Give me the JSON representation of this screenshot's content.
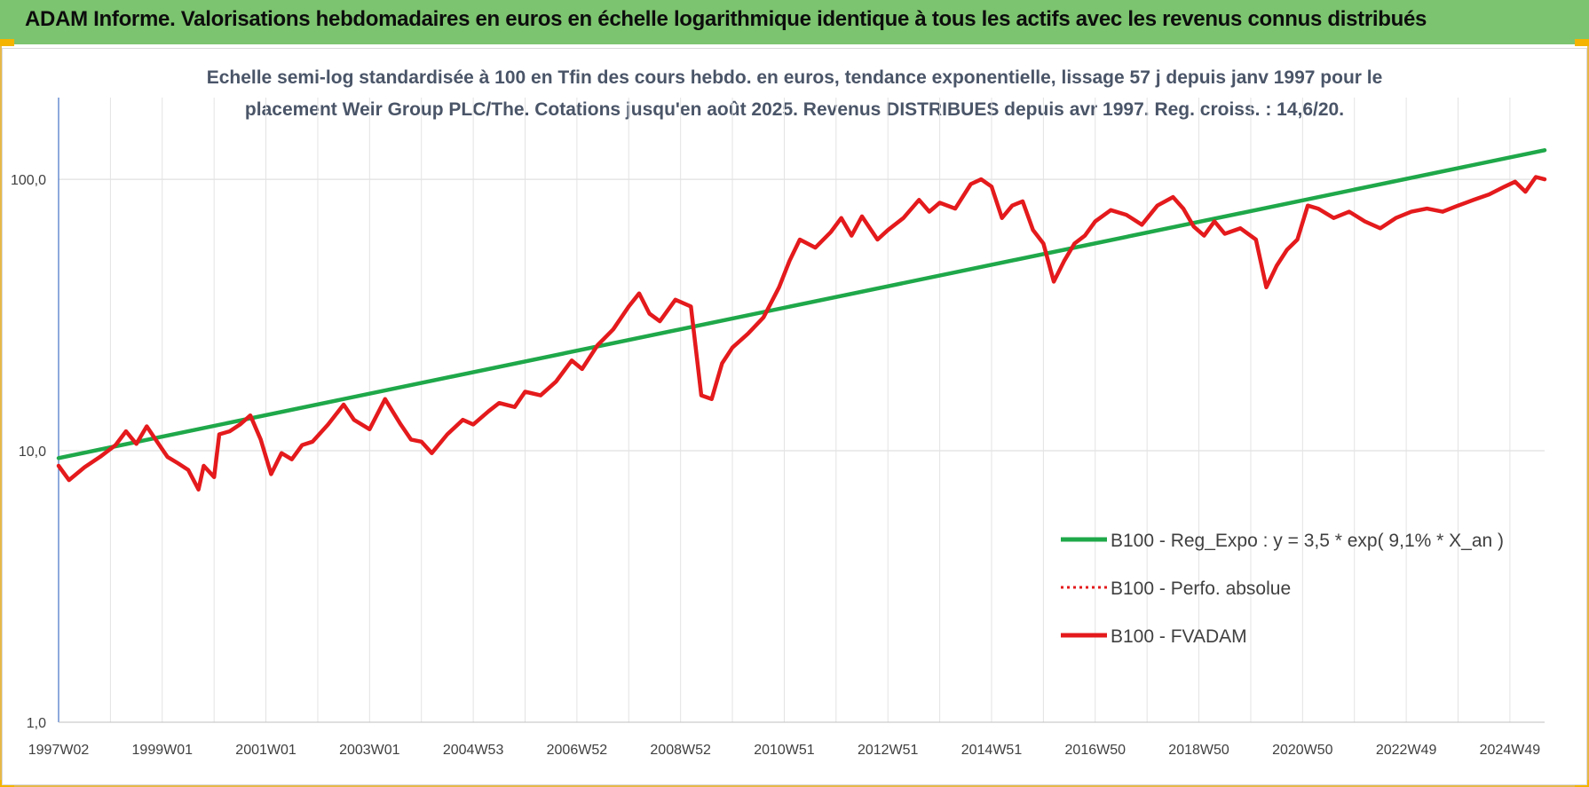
{
  "header": {
    "title": "ADAM Informe. Valorisations hebdomadaires en euros en échelle logarithmique identique à tous les actifs avec les revenus connus distribués"
  },
  "chart_data": {
    "type": "line",
    "title_line1": "Echelle semi-log standardisée à 100 en Tfin des cours hebdo. en euros, tendance exponentielle, lissage 57 j depuis janv 1997 pour le",
    "title_line2": "placement Weir Group PLC/The. Cotations jusqu'en août 2025. Revenus DISTRIBUES depuis avr 1997. Reg. croiss. : 14,6/20.",
    "y_scale": "log",
    "ylim": [
      1,
      200
    ],
    "y_ticks": [
      "1,0",
      "10,0",
      "100,0"
    ],
    "y_tick_values": [
      1,
      10,
      100
    ],
    "x_ticks": [
      "1997W02",
      "1999W01",
      "2001W01",
      "2003W01",
      "2004W53",
      "2006W52",
      "2008W52",
      "2010W51",
      "2012W51",
      "2014W51",
      "2016W50",
      "2018W50",
      "2020W50",
      "2022W49",
      "2024W49"
    ],
    "x_tick_years": [
      1997.0,
      1999.0,
      2001.0,
      2003.0,
      2005.0,
      2007.0,
      2009.0,
      2011.0,
      2013.0,
      2015.0,
      2017.0,
      2019.0,
      2021.0,
      2023.0,
      2025.0
    ],
    "xlim": [
      1997.0,
      2025.67
    ],
    "grid": true,
    "legend_position": "bottom-right",
    "series": [
      {
        "name": "B100 - Reg_Expo : y = 3,5 * exp( 9,1% *  X_an )",
        "color": "#1fa84a",
        "style": "solid",
        "points": [
          [
            1997.0,
            9.4
          ],
          [
            2025.67,
            128
          ]
        ]
      },
      {
        "name": "B100 - Perfo. absolue",
        "color": "#e41a1c",
        "style": "dotted",
        "points": []
      },
      {
        "name": "B100 - FVADAM",
        "color": "#e41a1c",
        "style": "solid",
        "points": [
          [
            1997.0,
            8.8
          ],
          [
            1997.2,
            7.8
          ],
          [
            1997.5,
            8.7
          ],
          [
            1997.8,
            9.5
          ],
          [
            1998.1,
            10.5
          ],
          [
            1998.3,
            11.8
          ],
          [
            1998.5,
            10.6
          ],
          [
            1998.7,
            12.3
          ],
          [
            1998.9,
            10.8
          ],
          [
            1999.1,
            9.5
          ],
          [
            1999.3,
            9.0
          ],
          [
            1999.5,
            8.5
          ],
          [
            1999.7,
            7.2
          ],
          [
            1999.8,
            8.8
          ],
          [
            2000.0,
            8.0
          ],
          [
            2000.1,
            11.5
          ],
          [
            2000.3,
            11.8
          ],
          [
            2000.5,
            12.5
          ],
          [
            2000.7,
            13.5
          ],
          [
            2000.9,
            11.0
          ],
          [
            2001.1,
            8.2
          ],
          [
            2001.3,
            9.8
          ],
          [
            2001.5,
            9.3
          ],
          [
            2001.7,
            10.5
          ],
          [
            2001.9,
            10.8
          ],
          [
            2002.2,
            12.5
          ],
          [
            2002.5,
            14.8
          ],
          [
            2002.7,
            13.0
          ],
          [
            2003.0,
            12.0
          ],
          [
            2003.3,
            15.5
          ],
          [
            2003.6,
            12.5
          ],
          [
            2003.8,
            11.0
          ],
          [
            2004.0,
            10.8
          ],
          [
            2004.2,
            9.8
          ],
          [
            2004.5,
            11.5
          ],
          [
            2004.8,
            13.0
          ],
          [
            2005.0,
            12.5
          ],
          [
            2005.3,
            14.0
          ],
          [
            2005.5,
            15.0
          ],
          [
            2005.8,
            14.5
          ],
          [
            2006.0,
            16.5
          ],
          [
            2006.3,
            16.0
          ],
          [
            2006.6,
            18.0
          ],
          [
            2006.9,
            21.5
          ],
          [
            2007.1,
            20.0
          ],
          [
            2007.4,
            24.5
          ],
          [
            2007.7,
            28.0
          ],
          [
            2008.0,
            34.0
          ],
          [
            2008.2,
            38.0
          ],
          [
            2008.4,
            32.0
          ],
          [
            2008.6,
            30.0
          ],
          [
            2008.9,
            36.0
          ],
          [
            2009.2,
            34.0
          ],
          [
            2009.4,
            16.0
          ],
          [
            2009.6,
            15.5
          ],
          [
            2009.8,
            21.0
          ],
          [
            2010.0,
            24.0
          ],
          [
            2010.3,
            27.0
          ],
          [
            2010.6,
            31.0
          ],
          [
            2010.9,
            40.0
          ],
          [
            2011.1,
            50.0
          ],
          [
            2011.3,
            60.0
          ],
          [
            2011.6,
            56.0
          ],
          [
            2011.9,
            64.0
          ],
          [
            2012.1,
            72.0
          ],
          [
            2012.3,
            62.0
          ],
          [
            2012.5,
            73.0
          ],
          [
            2012.8,
            60.0
          ],
          [
            2013.0,
            65.0
          ],
          [
            2013.3,
            72.0
          ],
          [
            2013.6,
            84.0
          ],
          [
            2013.8,
            76.0
          ],
          [
            2014.0,
            82.0
          ],
          [
            2014.3,
            78.0
          ],
          [
            2014.6,
            96.0
          ],
          [
            2014.8,
            100.0
          ],
          [
            2015.0,
            94.0
          ],
          [
            2015.2,
            72.0
          ],
          [
            2015.4,
            80.0
          ],
          [
            2015.6,
            83.0
          ],
          [
            2015.8,
            65.0
          ],
          [
            2016.0,
            58.0
          ],
          [
            2016.2,
            42.0
          ],
          [
            2016.4,
            50.0
          ],
          [
            2016.6,
            58.0
          ],
          [
            2016.8,
            62.0
          ],
          [
            2017.0,
            70.0
          ],
          [
            2017.3,
            77.0
          ],
          [
            2017.6,
            74.0
          ],
          [
            2017.9,
            68.0
          ],
          [
            2018.2,
            80.0
          ],
          [
            2018.5,
            86.0
          ],
          [
            2018.7,
            78.0
          ],
          [
            2018.9,
            67.0
          ],
          [
            2019.1,
            62.0
          ],
          [
            2019.3,
            70.0
          ],
          [
            2019.5,
            63.0
          ],
          [
            2019.8,
            66.0
          ],
          [
            2020.1,
            60.0
          ],
          [
            2020.3,
            40.0
          ],
          [
            2020.5,
            48.0
          ],
          [
            2020.7,
            55.0
          ],
          [
            2020.9,
            60.0
          ],
          [
            2021.1,
            80.0
          ],
          [
            2021.3,
            78.0
          ],
          [
            2021.6,
            72.0
          ],
          [
            2021.9,
            76.0
          ],
          [
            2022.2,
            70.0
          ],
          [
            2022.5,
            66.0
          ],
          [
            2022.8,
            72.0
          ],
          [
            2023.1,
            76.0
          ],
          [
            2023.4,
            78.0
          ],
          [
            2023.7,
            76.0
          ],
          [
            2024.0,
            80.0
          ],
          [
            2024.3,
            84.0
          ],
          [
            2024.6,
            88.0
          ],
          [
            2024.9,
            94.0
          ],
          [
            2025.1,
            98.0
          ],
          [
            2025.3,
            90.0
          ],
          [
            2025.5,
            102.0
          ],
          [
            2025.67,
            100.0
          ]
        ]
      }
    ]
  }
}
